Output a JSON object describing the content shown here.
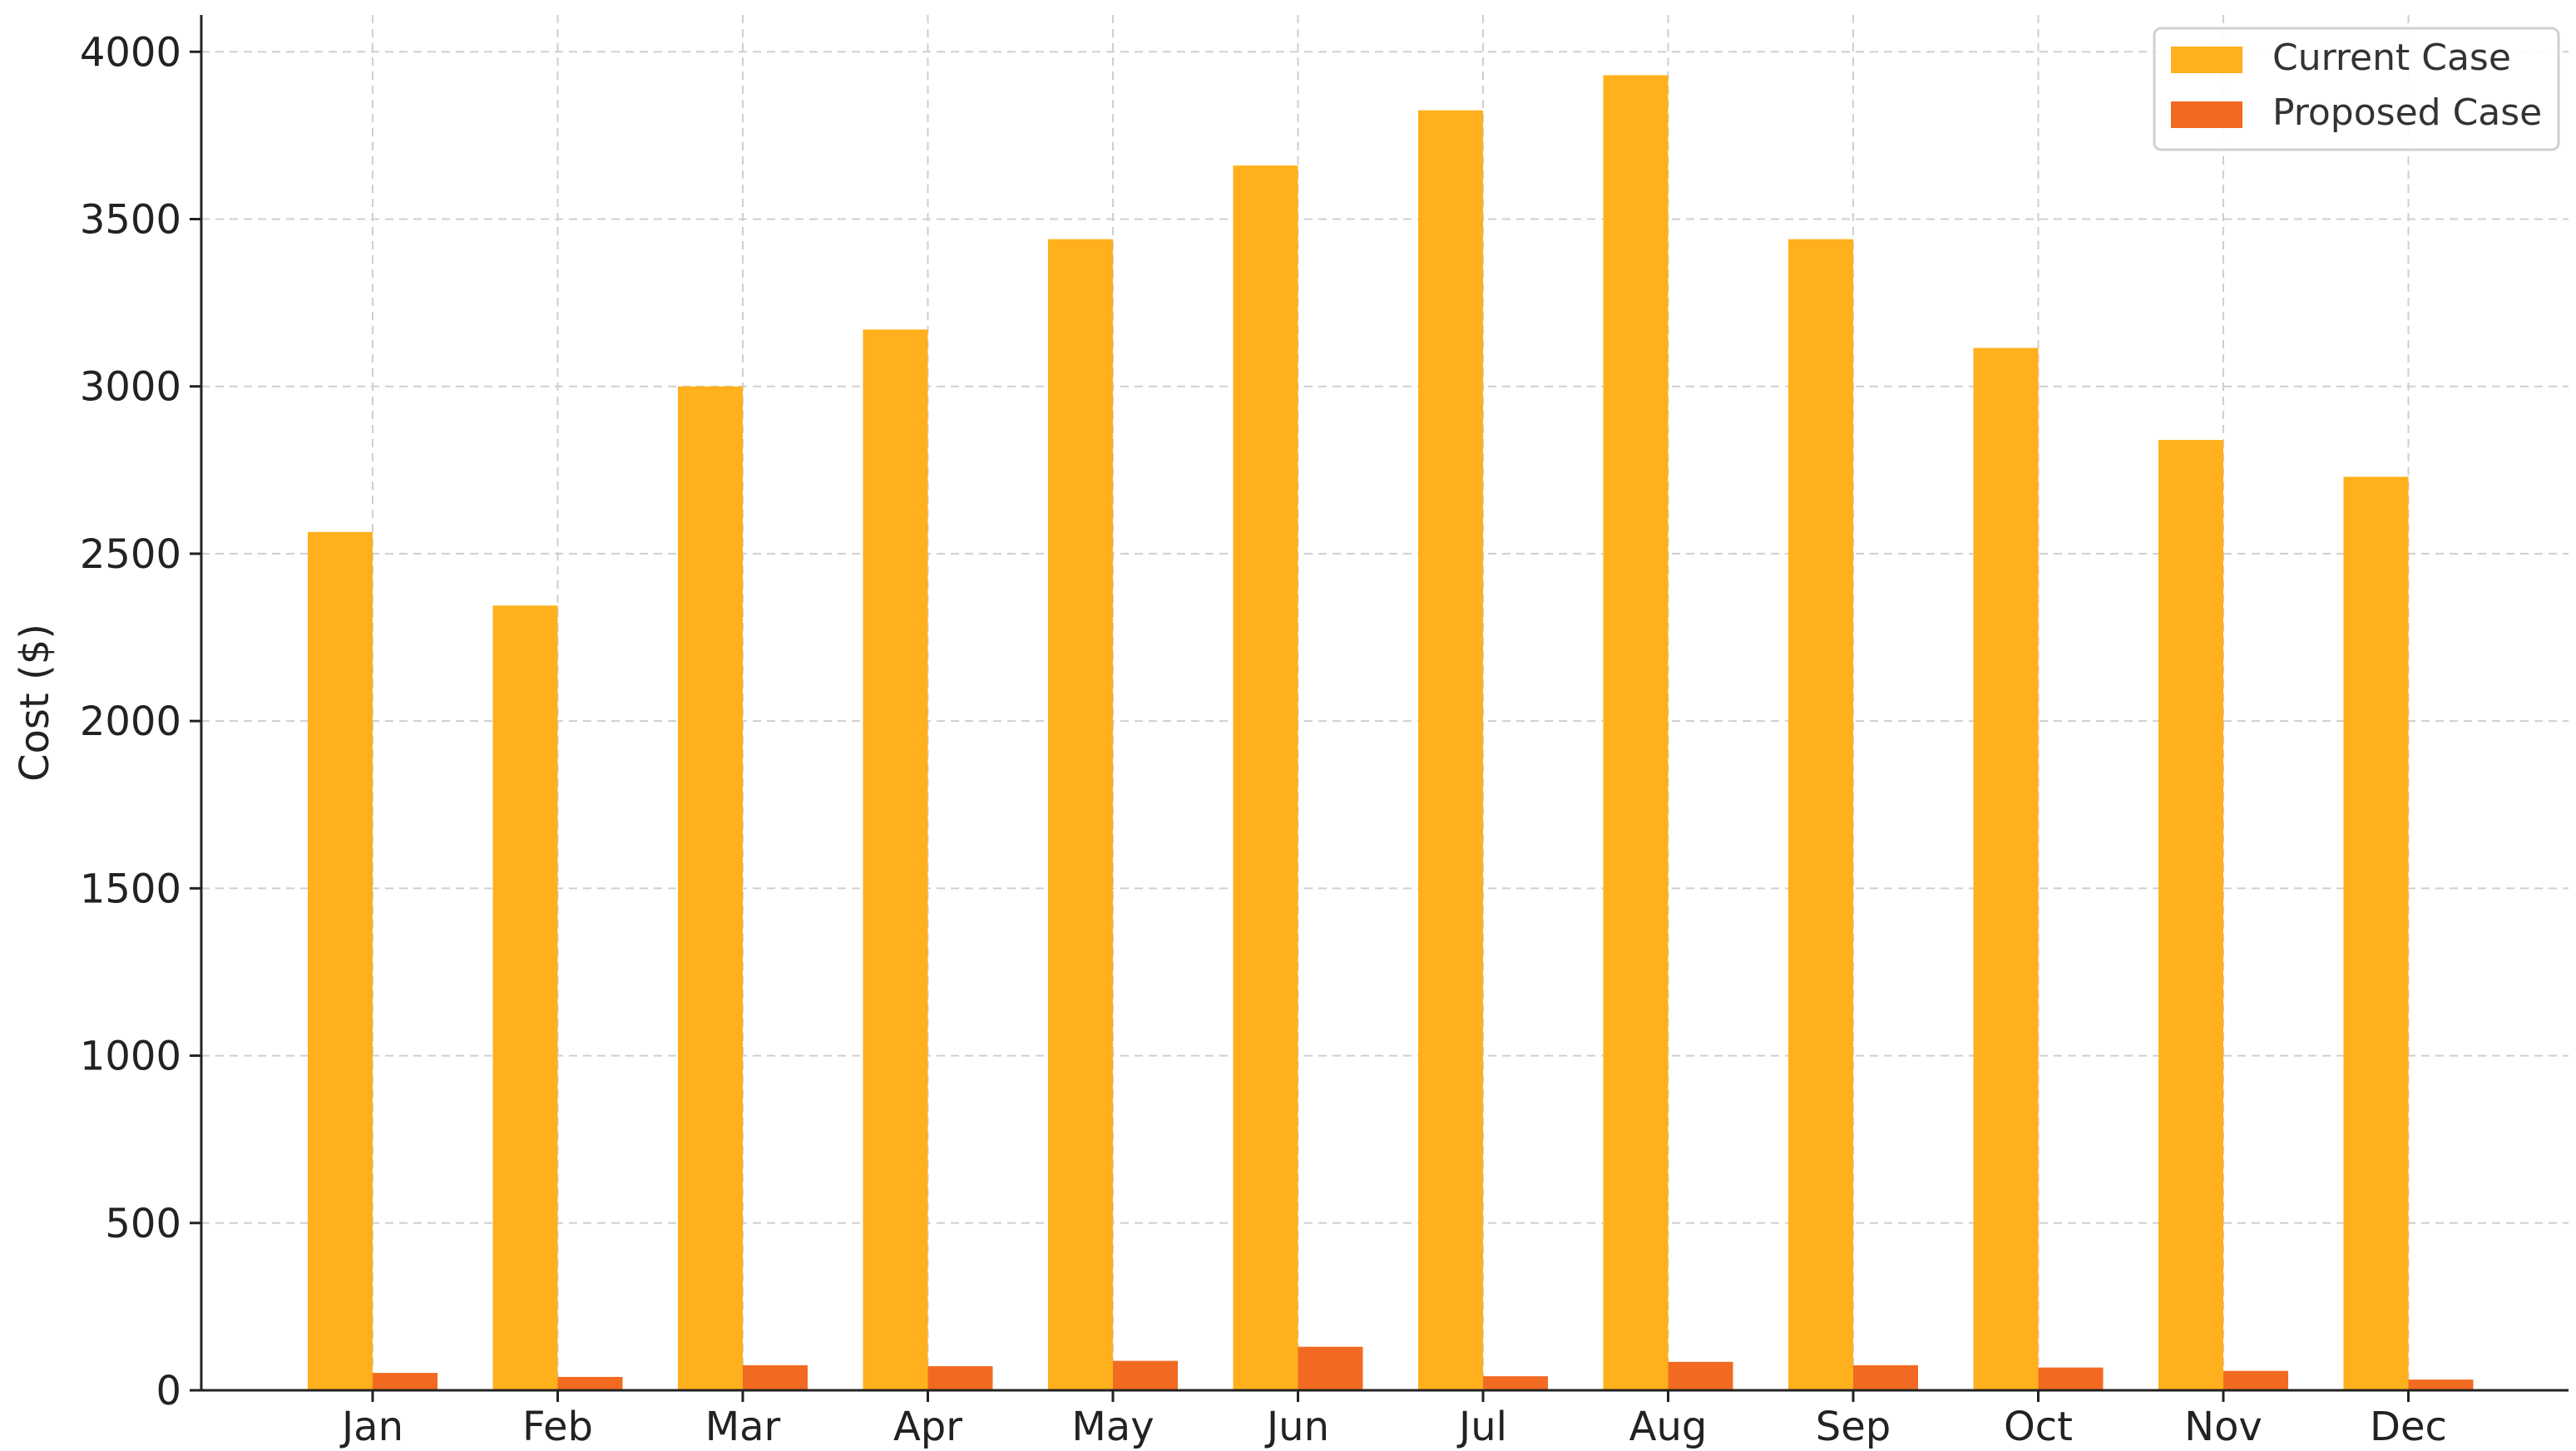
{
  "chart_data": {
    "type": "bar",
    "title": "",
    "xlabel": "",
    "ylabel": "Cost ($)",
    "categories": [
      "Jan",
      "Feb",
      "Mar",
      "Apr",
      "May",
      "Jun",
      "Jul",
      "Aug",
      "Sep",
      "Oct",
      "Nov",
      "Dec"
    ],
    "series": [
      {
        "name": "Current Case",
        "color": "#FFB01C",
        "values": [
          2565,
          2345,
          3000,
          3170,
          3440,
          3660,
          3825,
          3930,
          3440,
          3115,
          2840,
          2730
        ]
      },
      {
        "name": "Proposed Case",
        "color": "#F26A21",
        "values": [
          52,
          40,
          75,
          72,
          88,
          130,
          42,
          85,
          75,
          68,
          58,
          32
        ]
      }
    ],
    "yticks": [
      "0",
      "500",
      "1000",
      "1500",
      "2000",
      "2500",
      "3000",
      "3500",
      "4000"
    ],
    "ylim": [
      0,
      4110
    ],
    "grid": true,
    "legend_position": "top-right"
  }
}
